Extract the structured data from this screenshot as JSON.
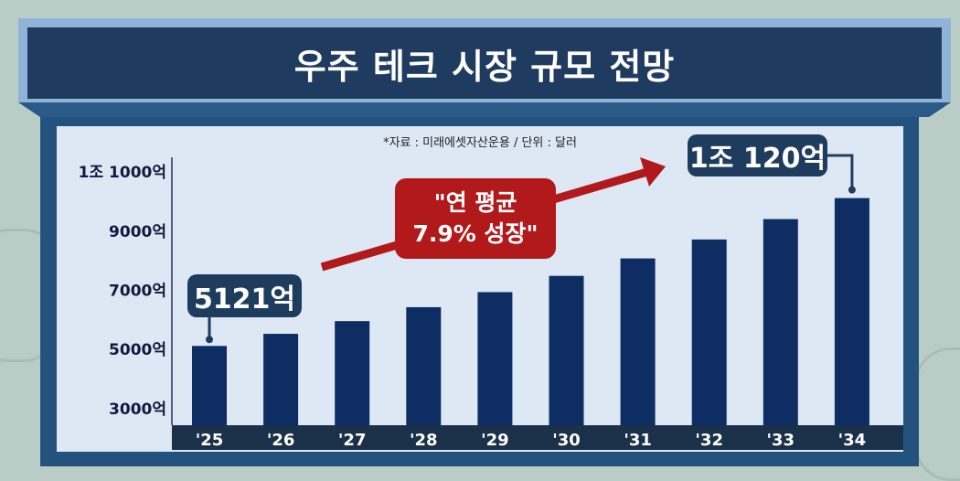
{
  "title": "우주 테크 시장 규모 전망",
  "source_note": "*자료 : 미래에셋자산운용 / 단위 : 달러",
  "chart_data": {
    "type": "bar",
    "title": "우주 테크 시장 규모 전망",
    "categories": [
      "'25",
      "'26",
      "'27",
      "'28",
      "'29",
      "'30",
      "'31",
      "'32",
      "'33",
      "'34"
    ],
    "values": [
      5121,
      5530,
      5960,
      6430,
      6940,
      7490,
      8080,
      8720,
      9410,
      10120
    ],
    "unit": "억 달러",
    "y_ticks": [
      {
        "value": 3000,
        "label": "3000억"
      },
      {
        "value": 5000,
        "label": "5000억"
      },
      {
        "value": 7000,
        "label": "7000억"
      },
      {
        "value": 9000,
        "label": "9000억"
      },
      {
        "value": 11000,
        "label": "1조 1000억"
      }
    ],
    "ylim": [
      2440,
      11500
    ],
    "grid": false,
    "bar_color": "#0e2d62",
    "annotations": {
      "first": "5121억",
      "last": "1조 120억",
      "growth_line1": "\"연 평균",
      "growth_line2": "7.9% 성장\""
    }
  },
  "colors": {
    "accent_red": "#b1191b",
    "navy": "#1f3b5f"
  }
}
